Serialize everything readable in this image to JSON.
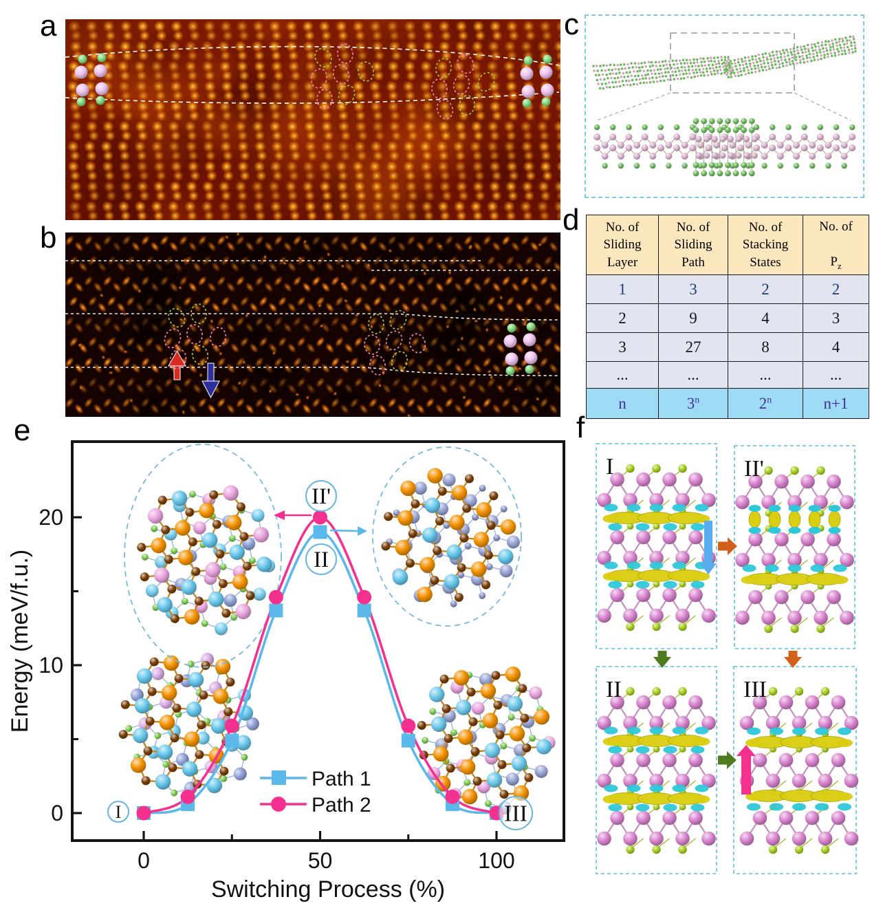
{
  "panels": {
    "a": {
      "label": "a",
      "description": "stem-image-top",
      "colors": {
        "bg_dark": "#6f1200",
        "bg_mid": "#7d1a02",
        "blob_core": "#ffe478",
        "blob_ring": "#f38c0c",
        "contour": "#ffffff",
        "atom_pink": "#ecc2ee",
        "atom_green": "#7ed87e",
        "dash_pink": "#f080b8",
        "dash_green": "#a6c832"
      }
    },
    "b": {
      "label": "b",
      "description": "stem-image-bottom",
      "colors": {
        "bg": "#140300",
        "blob_core": "#ffd650",
        "blob_ring": "#e16408",
        "contour": "#ffffff",
        "arrow_red": "#d92a20",
        "arrow_blue": "#2d2f9e",
        "atom_pink": "#ecc2ee",
        "atom_green": "#7ed87e",
        "dash_pink": "#f080b8",
        "dash_green": "#a6c832"
      }
    },
    "c": {
      "label": "c",
      "description": "layered-crystal-structure",
      "colors": {
        "border": "#7ccbe4",
        "atom_green": "#6fb85e",
        "atom_pink": "#d7a3c3",
        "dash_rect": "#999999",
        "bond": "#c49a7a"
      }
    },
    "d": {
      "label": "d",
      "table": {
        "headers": [
          "No. of\nSliding\nLayer",
          "No. of\nSliding\nPath",
          "No. of\nStacking\nStates"
        ],
        "header_pz_main": "No. of",
        "header_pz_base": "P",
        "header_pz_sub": "z",
        "rows": [
          [
            "1",
            "3",
            "2",
            "2"
          ],
          [
            "2",
            "9",
            "4",
            "3"
          ],
          [
            "3",
            "27",
            "8",
            "4"
          ],
          [
            "...",
            "...",
            "...",
            "..."
          ],
          [
            "n",
            "3^n",
            "2^n",
            "n+1"
          ]
        ],
        "colors": {
          "header_bg": "#fbe7bd",
          "row_bg": "#e2e4f0",
          "last_row_bg": "#9edcf6",
          "row1_text": "#1f3c78",
          "body_text": "#14141e",
          "last_text": "#43309a",
          "border": "#1a1a1a"
        }
      }
    },
    "e": {
      "label": "e"
    },
    "f": {
      "label": "f",
      "boxes": [
        {
          "label": "I"
        },
        {
          "label": "II'"
        },
        {
          "label": "II"
        },
        {
          "label": "III"
        }
      ],
      "colors": {
        "box_border": "#58c0e0",
        "atom_pink": "#d883ce",
        "atom_green": "#a5ce1e",
        "iso_yellow": "#dace13",
        "iso_cyan": "#2ec8da",
        "arrow_blue": "#56acec",
        "arrow_orange": "#d2601a",
        "arrow_green": "#4f7a1e",
        "arrow_pink": "#f5318f"
      }
    }
  },
  "chart_data": {
    "type": "line",
    "xlabel": "Switching Process (%)",
    "ylabel": "Energy (meV/f.u.)",
    "x": [
      0,
      12.5,
      25,
      37.5,
      50,
      62.5,
      75,
      87.5,
      100
    ],
    "series": [
      {
        "name": "Path 1",
        "marker": "square",
        "color": "#5bb8ea",
        "values": [
          0,
          0.6,
          4.9,
          13.7,
          19.0,
          13.7,
          4.9,
          0.6,
          0
        ]
      },
      {
        "name": "Path 2",
        "marker": "circle",
        "color": "#f5318f",
        "values": [
          0,
          1.1,
          5.9,
          14.6,
          20.0,
          14.6,
          5.9,
          1.1,
          0
        ]
      }
    ],
    "xlim": [
      -20,
      123
    ],
    "ylim": [
      -2,
      25
    ],
    "xticks": [
      0,
      50,
      100
    ],
    "xticks_minor": [
      25,
      75
    ],
    "yticks": [
      0,
      10,
      20
    ],
    "yticks_minor": [
      5,
      15
    ],
    "grid": false,
    "legend_position": "lower center",
    "annotations": [
      {
        "text": "I",
        "x": 0,
        "y": 0
      },
      {
        "text": "II",
        "x": 50,
        "y": 19,
        "series": "Path 1"
      },
      {
        "text": "II'",
        "x": 50,
        "y": 20,
        "series": "Path 2"
      },
      {
        "text": "III",
        "x": 100,
        "y": 0
      }
    ],
    "annotation_circle_color": "#66b4e4"
  }
}
